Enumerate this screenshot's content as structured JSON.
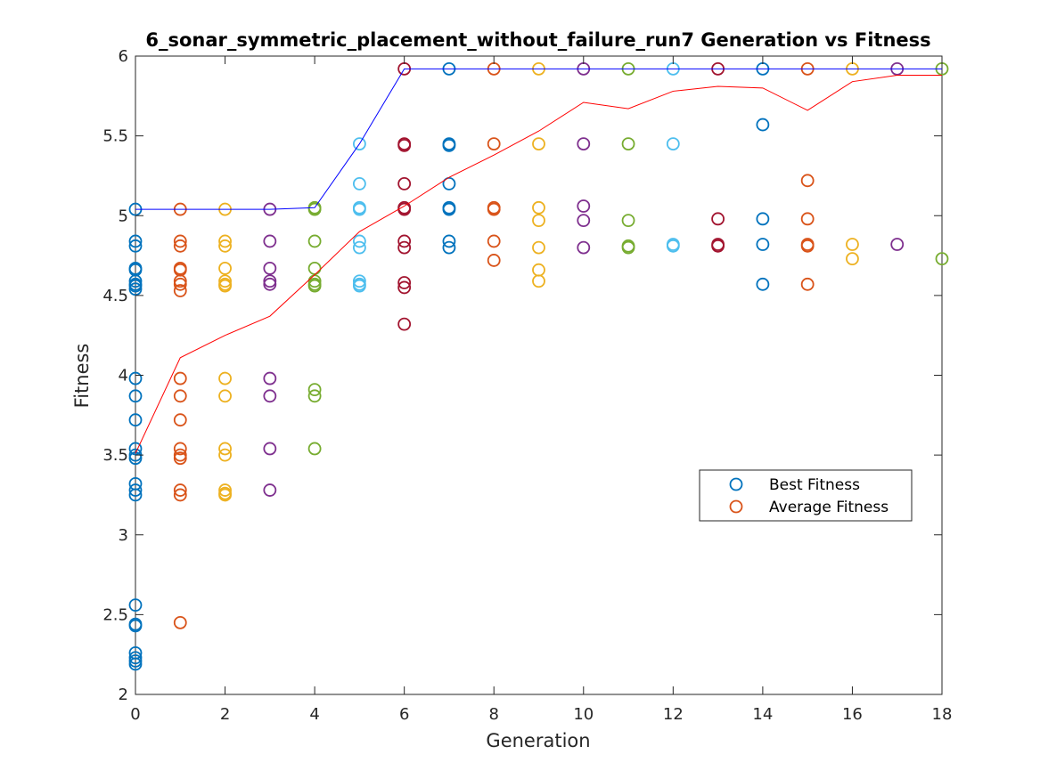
{
  "chart_data": {
    "type": "scatter",
    "title": "6_sonar_symmetric_placement_without_failure_run7 Generation vs Fitness",
    "xlabel": "Generation",
    "ylabel": "Fitness",
    "xlim": [
      0,
      18
    ],
    "ylim": [
      2,
      6
    ],
    "xticks": [
      0,
      2,
      4,
      6,
      8,
      10,
      12,
      14,
      16,
      18
    ],
    "yticks": [
      2,
      2.5,
      3,
      3.5,
      4,
      4.5,
      5,
      5.5,
      6
    ],
    "grid": false,
    "legend": {
      "placement": "center-right",
      "entries": [
        {
          "label": "Best Fitness",
          "color": "#0072BD"
        },
        {
          "label": "Average Fitness",
          "color": "#D95319"
        }
      ]
    },
    "point_colors": [
      "#0072BD",
      "#D95319",
      "#EDB120",
      "#7E2F8E",
      "#77AC30",
      "#4DBEEE",
      "#A2142F"
    ],
    "population": [
      {
        "generation": 0,
        "values": [
          5.04,
          4.84,
          4.81,
          4.67,
          4.66,
          4.59,
          4.57,
          4.56,
          4.54,
          3.98,
          3.87,
          3.72,
          3.54,
          3.5,
          3.48,
          3.32,
          3.28,
          3.25,
          2.56,
          2.44,
          2.43,
          2.26,
          2.23,
          2.21,
          2.19
        ]
      },
      {
        "generation": 1,
        "values": [
          5.04,
          4.84,
          4.81,
          4.67,
          4.66,
          4.59,
          4.57,
          4.53,
          3.98,
          3.87,
          3.72,
          3.54,
          3.5,
          3.48,
          3.28,
          3.25,
          2.45
        ]
      },
      {
        "generation": 2,
        "values": [
          5.04,
          4.84,
          4.81,
          4.67,
          4.59,
          4.57,
          4.56,
          3.98,
          3.87,
          3.54,
          3.5,
          3.28,
          3.26,
          3.25
        ]
      },
      {
        "generation": 3,
        "values": [
          5.04,
          4.84,
          4.67,
          4.59,
          4.57,
          3.98,
          3.87,
          3.54,
          3.28
        ]
      },
      {
        "generation": 4,
        "values": [
          5.05,
          5.04,
          4.84,
          4.67,
          4.59,
          4.57,
          4.56,
          3.91,
          3.87,
          3.54
        ]
      },
      {
        "generation": 5,
        "values": [
          5.45,
          5.2,
          5.05,
          5.04,
          4.84,
          4.8,
          4.59,
          4.57,
          4.56
        ]
      },
      {
        "generation": 6,
        "values": [
          5.92,
          5.45,
          5.44,
          5.2,
          5.05,
          5.04,
          4.84,
          4.8,
          4.58,
          4.55,
          4.32
        ]
      },
      {
        "generation": 7,
        "values": [
          5.92,
          5.45,
          5.44,
          5.2,
          5.05,
          5.04,
          4.84,
          4.8
        ]
      },
      {
        "generation": 8,
        "values": [
          5.92,
          5.45,
          5.05,
          5.04,
          4.84,
          4.72
        ]
      },
      {
        "generation": 9,
        "values": [
          5.92,
          5.45,
          5.05,
          4.97,
          4.8,
          4.66,
          4.59
        ]
      },
      {
        "generation": 10,
        "values": [
          5.92,
          5.45,
          5.06,
          4.97,
          4.8
        ]
      },
      {
        "generation": 11,
        "values": [
          5.92,
          5.45,
          4.97,
          4.81,
          4.8
        ]
      },
      {
        "generation": 12,
        "values": [
          5.92,
          5.45,
          4.82,
          4.81
        ]
      },
      {
        "generation": 13,
        "values": [
          5.92,
          4.98,
          4.82,
          4.81
        ]
      },
      {
        "generation": 14,
        "values": [
          5.92,
          5.57,
          4.98,
          4.82,
          4.57
        ]
      },
      {
        "generation": 15,
        "values": [
          5.92,
          5.22,
          4.98,
          4.82,
          4.81,
          4.57
        ]
      },
      {
        "generation": 16,
        "values": [
          5.92,
          4.82,
          4.73
        ]
      },
      {
        "generation": 17,
        "values": [
          5.92,
          4.82
        ]
      },
      {
        "generation": 18,
        "values": [
          5.92,
          4.73
        ]
      }
    ],
    "series": [
      {
        "name": "Best Fitness",
        "color": "#0000FF",
        "x": [
          0,
          1,
          2,
          3,
          4,
          5,
          6,
          7,
          8,
          9,
          10,
          11,
          12,
          13,
          14,
          15,
          16,
          17,
          18
        ],
        "y": [
          5.04,
          5.04,
          5.04,
          5.04,
          5.05,
          5.45,
          5.92,
          5.92,
          5.92,
          5.92,
          5.92,
          5.92,
          5.92,
          5.92,
          5.92,
          5.92,
          5.92,
          5.92,
          5.92
        ]
      },
      {
        "name": "Average Fitness",
        "color": "#FF0000",
        "x": [
          0,
          1,
          2,
          3,
          4,
          5,
          6,
          7,
          8,
          9,
          10,
          11,
          12,
          13,
          14,
          15,
          16,
          17,
          18
        ],
        "y": [
          3.51,
          4.11,
          4.25,
          4.37,
          4.63,
          4.9,
          5.06,
          5.24,
          5.38,
          5.53,
          5.71,
          5.67,
          5.78,
          5.81,
          5.8,
          5.66,
          5.84,
          5.88,
          5.88
        ]
      }
    ]
  }
}
